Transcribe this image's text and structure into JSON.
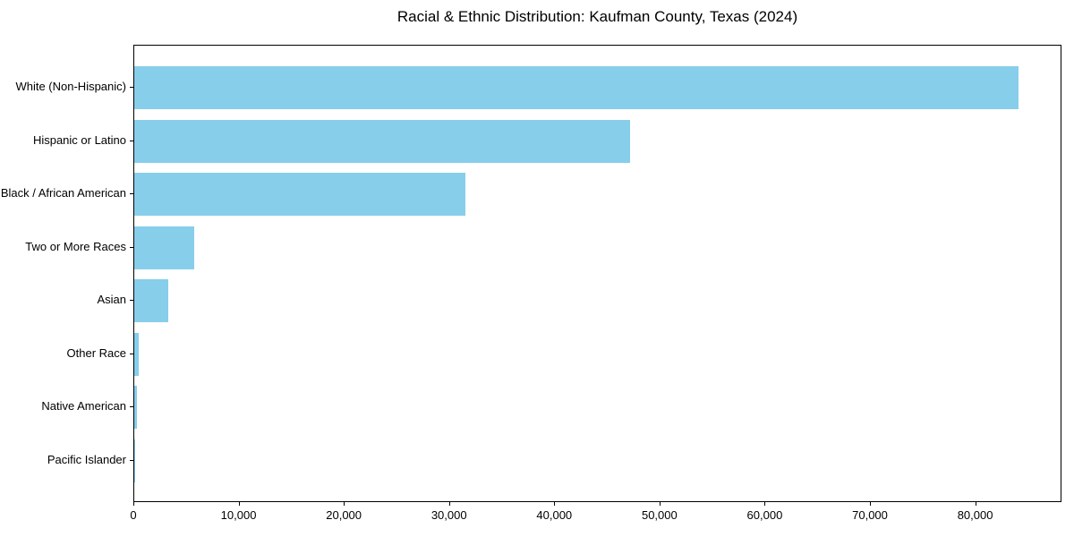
{
  "chart_data": {
    "type": "bar",
    "orientation": "horizontal",
    "title": "Racial & Ethnic Distribution: Kaufman County, Texas (2024)",
    "categories": [
      "White (Non-Hispanic)",
      "Hispanic or Latino",
      "Black / African American",
      "Two or More Races",
      "Asian",
      "Other Race",
      "Native American",
      "Pacific Islander"
    ],
    "values": [
      84000,
      47100,
      31500,
      5700,
      3200,
      400,
      250,
      50
    ],
    "xlabel": "",
    "ylabel": "",
    "xlim": [
      0,
      88200
    ],
    "xticks": [
      0,
      10000,
      20000,
      30000,
      40000,
      50000,
      60000,
      70000,
      80000
    ],
    "xtick_labels": [
      "0",
      "10,000",
      "20,000",
      "30,000",
      "40,000",
      "50,000",
      "60,000",
      "70,000",
      "80,000"
    ],
    "bar_color": "#87CEEB",
    "axis_color": "#000000",
    "text_color": "#000000",
    "background_color": "#ffffff",
    "grid": false,
    "legend": null
  }
}
